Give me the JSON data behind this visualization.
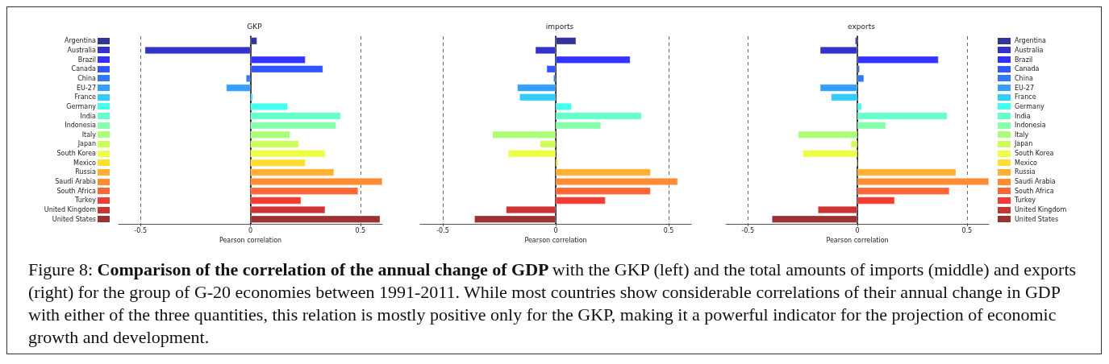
{
  "chart_data": [
    {
      "type": "bar",
      "orientation": "horizontal",
      "title": "GKP",
      "xlabel": "Pearson correlation",
      "grid": "x",
      "categories": [
        "Argentina",
        "Australia",
        "Brazil",
        "Canada",
        "China",
        "EU-27",
        "France",
        "Germany",
        "India",
        "Indonesia",
        "Italy",
        "Japan",
        "South Korea",
        "Mexico",
        "Russia",
        "Saudi Arabia",
        "South Africa",
        "Turkey",
        "United Kingdom",
        "United States"
      ],
      "values": [
        0.03,
        -0.48,
        0.25,
        0.33,
        -0.02,
        -0.11,
        0.01,
        0.17,
        0.41,
        0.39,
        0.18,
        0.22,
        0.34,
        0.25,
        0.38,
        0.6,
        0.49,
        0.23,
        0.34,
        0.59
      ],
      "colors": [
        "#333399",
        "#3333cc",
        "#3333ff",
        "#3355ff",
        "#3377ff",
        "#33a0ff",
        "#33ccff",
        "#44ffee",
        "#66ffcc",
        "#88ffaa",
        "#aaff77",
        "#ccff55",
        "#eeff44",
        "#ffdd33",
        "#ffb033",
        "#ff8c33",
        "#ff6633",
        "#f53a33",
        "#cc3333",
        "#993333"
      ],
      "xlim": [
        -0.6,
        0.6
      ],
      "xticks": [
        -0.5,
        0,
        0.5
      ],
      "annotations": [
        "Figure 8:",
        "Comparison of the correlation of the annual change of GDP",
        "with the GKP (left) and the total amounts of imports (middle) and exports (right) for the group of G-20 economies between 1991-2011. While most countries show considerable correlations of their annual change in GDP with either of the three quantities, this relation is mostly positive only for the GKP, making it a powerful indicator for the projection of economic growth and development."
      ]
    },
    {
      "type": "bar",
      "orientation": "horizontal",
      "title": "imports",
      "xlabel": "Pearson correlation",
      "grid": "x",
      "tick_labels": "x",
      "categories": [
        null,
        null,
        null,
        null,
        null,
        null,
        null,
        null,
        null,
        null,
        null,
        null,
        null,
        null,
        null,
        null,
        null,
        null,
        null,
        null
      ],
      "values": [
        0.09,
        -0.09,
        0.33,
        -0.04,
        -0.01,
        -0.17,
        -0.16,
        0.07,
        0.38,
        0.2,
        -0.28,
        -0.07,
        -0.21,
        0.01,
        0.42,
        0.54,
        0.42,
        0.22,
        -0.22,
        -0.36
      ],
      "colors": [
        "#333399",
        "#3333cc",
        "#3333ff",
        "#3355ff",
        "#3377ff",
        "#33a0ff",
        "#33ccff",
        "#44ffee",
        "#66ffcc",
        "#88ffaa",
        "#aaff77",
        "#ccff55",
        "#eeff44",
        "#ffdd33",
        "#ffb033",
        "#ff8c33",
        "#ff6633",
        "#f53a33",
        "#cc3333",
        "#993333"
      ],
      "xlim": [
        -0.6,
        0.6
      ],
      "xticks": [
        -0.5,
        0,
        0.5
      ]
    },
    {
      "type": "bar",
      "orientation": "horizontal",
      "title": "exports",
      "xlabel": "Pearson correlation",
      "grid": "x",
      "categories": [
        "Argentina",
        "Australia",
        "Brazil",
        "Canada",
        "China",
        "EU-27",
        "France",
        "Germany",
        "India",
        "Indonesia",
        "Italy",
        "Japan",
        "South Korea",
        "Mexico",
        "Russia",
        "Saudi Arabia",
        "South Africa",
        "Turkey",
        "United Kingdom",
        "United States"
      ],
      "values": [
        -0.01,
        -0.17,
        0.37,
        0.01,
        0.03,
        -0.17,
        -0.12,
        0.02,
        0.41,
        0.13,
        -0.27,
        -0.03,
        -0.25,
        -0.004,
        0.45,
        0.6,
        0.42,
        0.17,
        -0.18,
        -0.39
      ],
      "colors": [
        "#333399",
        "#3333cc",
        "#3333ff",
        "#3355ff",
        "#3377ff",
        "#33a0ff",
        "#33ccff",
        "#44ffee",
        "#66ffcc",
        "#88ffaa",
        "#aaff77",
        "#ccff55",
        "#eeff44",
        "#ffdd33",
        "#ffb033",
        "#ff8c33",
        "#ff6633",
        "#f53a33",
        "#cc3333",
        "#993333"
      ],
      "xlim": [
        -0.6,
        0.6
      ],
      "xticks": [
        -0.5,
        0,
        0.5
      ]
    }
  ]
}
